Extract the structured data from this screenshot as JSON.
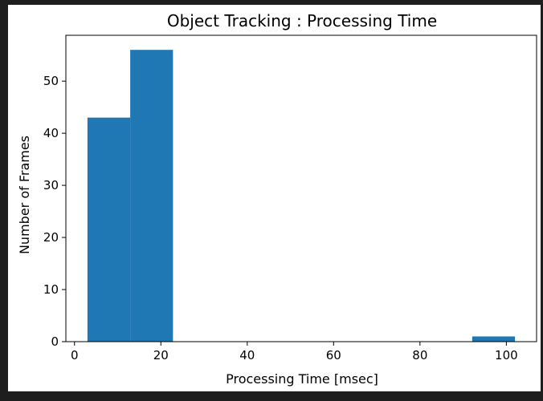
{
  "chart_data": {
    "type": "bar",
    "title": "Object Tracking : Processing Time",
    "xlabel": "Processing Time [msec]",
    "ylabel": "Number of Frames",
    "xlim": [
      -2,
      107
    ],
    "ylim": [
      0,
      58.8
    ],
    "xticks": [
      0,
      20,
      40,
      60,
      80,
      100
    ],
    "yticks": [
      0,
      10,
      20,
      30,
      40,
      50
    ],
    "grid": false,
    "bars": [
      {
        "x0": 3.0,
        "x1": 12.9,
        "value": 43
      },
      {
        "x0": 12.9,
        "x1": 22.8,
        "value": 56
      },
      {
        "x0": 22.8,
        "x1": 32.7,
        "value": 0
      },
      {
        "x0": 32.7,
        "x1": 42.6,
        "value": 0
      },
      {
        "x0": 42.6,
        "x1": 52.5,
        "value": 0
      },
      {
        "x0": 52.5,
        "x1": 62.4,
        "value": 0
      },
      {
        "x0": 62.4,
        "x1": 72.3,
        "value": 0
      },
      {
        "x0": 72.3,
        "x1": 82.2,
        "value": 0
      },
      {
        "x0": 82.2,
        "x1": 92.1,
        "value": 0
      },
      {
        "x0": 92.1,
        "x1": 102.0,
        "value": 1
      }
    ],
    "bar_color": "#1f77b4"
  }
}
